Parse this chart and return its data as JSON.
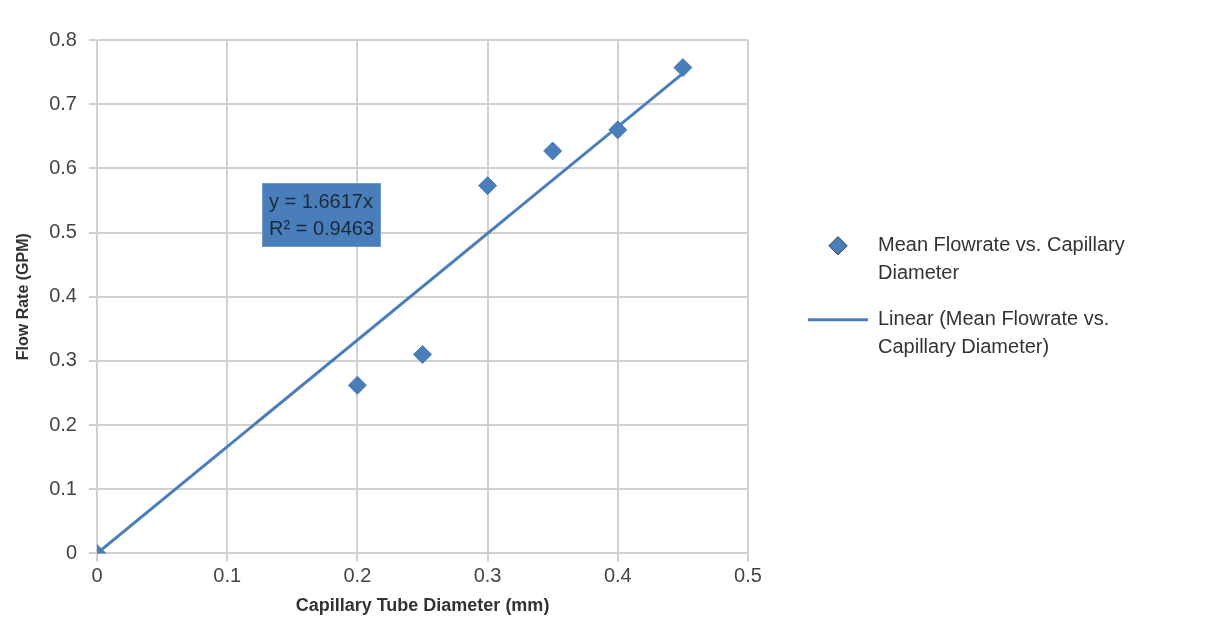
{
  "chart_data": {
    "type": "scatter",
    "xlabel": "Capillary Tube Diameter (mm)",
    "ylabel": "Flow Rate (GPM)",
    "xlim": [
      0,
      0.5
    ],
    "xticks": [
      0,
      0.1,
      0.2,
      0.3,
      0.4,
      0.5
    ],
    "ylim": [
      0,
      0.8
    ],
    "yticks": [
      0,
      0.1,
      0.2,
      0.3,
      0.4,
      0.5,
      0.6,
      0.7,
      0.8
    ],
    "grid": true,
    "legend": "right",
    "series": [
      {
        "name": "Mean Flowrate vs. Capillary Diameter",
        "color": "#4a7ebb",
        "marker": "diamond",
        "x": [
          0,
          0.2,
          0.25,
          0.3,
          0.35,
          0.4,
          0.45
        ],
        "values": [
          0,
          0.262,
          0.31,
          0.573,
          0.627,
          0.66,
          0.757
        ]
      },
      {
        "type": "line",
        "name": "Linear (Mean Flowrate vs. Capillary Diameter)",
        "color": "#4a7ebb",
        "marker": "none",
        "line_style": "solid",
        "x": [
          0,
          0.45
        ],
        "values": [
          0,
          0.748
        ]
      }
    ],
    "annotations": [
      "y = 1.6617x",
      "R² = 0.9463"
    ]
  }
}
